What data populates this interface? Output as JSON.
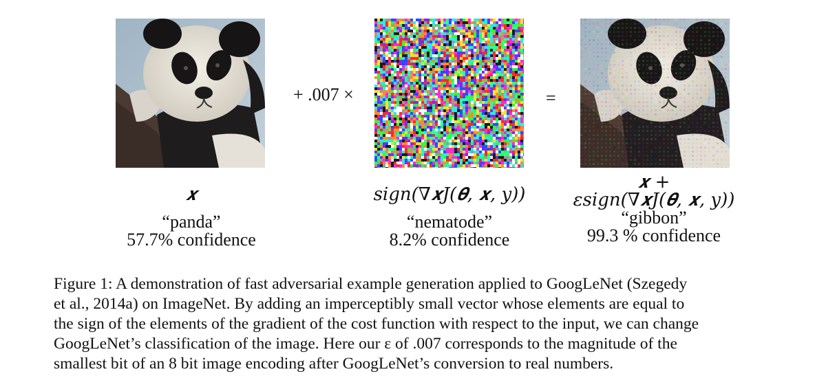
{
  "panels": [
    {
      "id": "original",
      "math": "𝒙",
      "label": "“panda”",
      "confidence": "57.7% confidence"
    },
    {
      "id": "perturbation",
      "math": "sign(∇𝒙J(𝜽, 𝒙, y))",
      "label": "“nematode”",
      "confidence": "8.2% confidence"
    },
    {
      "id": "adversarial",
      "math_line1": "𝒙 +",
      "math_line2": "εsign(∇𝒙J(𝜽, 𝒙, y))",
      "label": "“gibbon”",
      "confidence": "99.3 % confidence"
    }
  ],
  "operators": {
    "plus": "+ .007 ×",
    "equals": "="
  },
  "caption_lines": [
    "Figure 1:  A demonstration of fast adversarial example generation applied to GoogLeNet (Szegedy",
    "et al., 2014a) on ImageNet. By adding an imperceptibly small vector whose elements are equal to",
    "the sign of the elements of the gradient of the cost function with respect to the input, we can change",
    "GoogLeNet’s classification of the image.  Here our ε of .007 corresponds to the magnitude of the",
    "smallest bit of an 8 bit image encoding after GoogLeNet’s conversion to real numbers."
  ]
}
